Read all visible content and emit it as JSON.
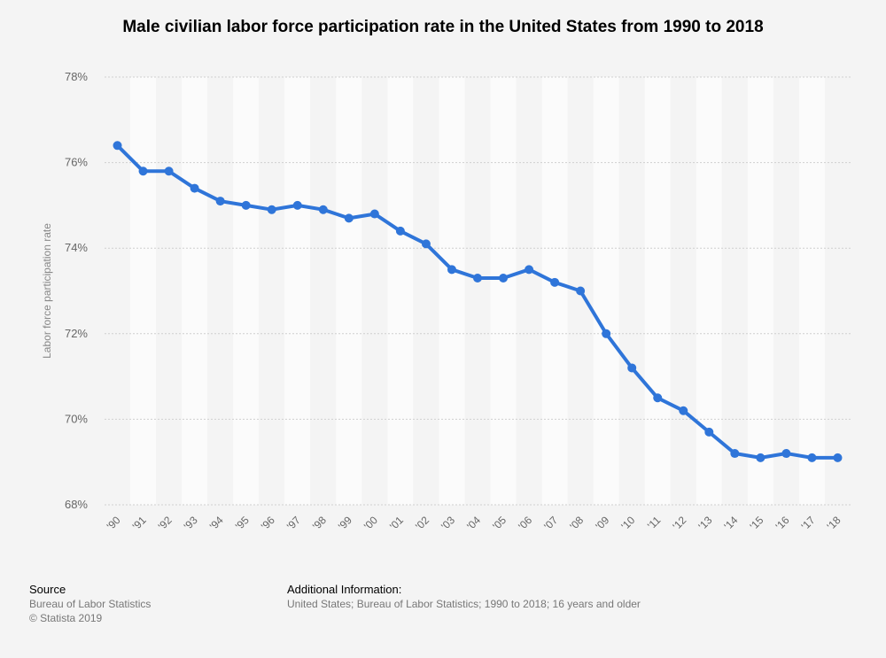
{
  "chart_data": {
    "type": "line",
    "title": "Male civilian labor force participation rate in the United States from 1990 to 2018",
    "xlabel": "",
    "ylabel": "Labor force participation rate",
    "categories": [
      "'90",
      "'91",
      "'92",
      "'93",
      "'94",
      "'95",
      "'96",
      "'97",
      "'98",
      "'99",
      "'00",
      "'01",
      "'02",
      "'03",
      "'04",
      "'05",
      "'06",
      "'07",
      "'08",
      "'09",
      "'10",
      "'11",
      "'12",
      "'13",
      "'14",
      "'15",
      "'16",
      "'17",
      "'18"
    ],
    "series": [
      {
        "name": "Labor force participation rate",
        "values": [
          76.4,
          75.8,
          75.8,
          75.4,
          75.1,
          75.0,
          74.9,
          75.0,
          74.9,
          74.7,
          74.8,
          74.4,
          74.1,
          73.5,
          73.3,
          73.3,
          73.5,
          73.2,
          73.0,
          72.0,
          71.2,
          70.5,
          70.2,
          69.7,
          69.2,
          69.1,
          69.2,
          69.1,
          69.1
        ]
      }
    ],
    "ylim": [
      68,
      78
    ],
    "yticks": [
      68,
      70,
      72,
      74,
      76,
      78
    ],
    "ytick_labels": [
      "68%",
      "70%",
      "72%",
      "74%",
      "76%",
      "78%"
    ],
    "grid": true,
    "color": "#2f75d9"
  },
  "footer": {
    "source_heading": "Source",
    "source_lines": [
      "Bureau of Labor Statistics",
      "© Statista 2019"
    ],
    "info_heading": "Additional Information:",
    "info_text": "United States; Bureau of Labor Statistics; 1990 to 2018; 16 years and older"
  }
}
